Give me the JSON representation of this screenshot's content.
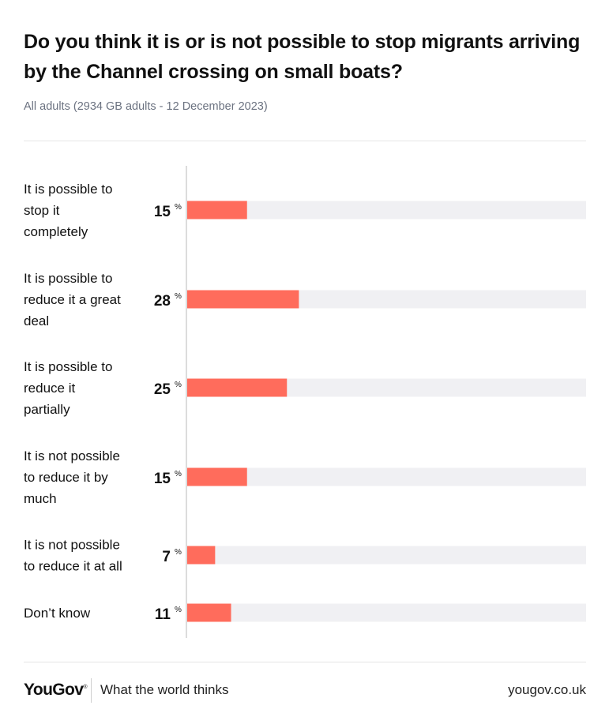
{
  "chart_data": {
    "type": "bar",
    "orientation": "horizontal",
    "title": "Do you think it is or is not possible to stop migrants arriving by the Channel crossing on small boats?",
    "subtitle": "All adults (2934 GB adults - 12 December 2023)",
    "unit": "%",
    "xlim": [
      0,
      100
    ],
    "categories": [
      [
        "It is possible to",
        "stop it",
        "completely"
      ],
      [
        "It is possible to",
        "reduce it a great",
        "deal"
      ],
      [
        "It is possible to",
        "reduce it",
        "partially"
      ],
      [
        "It is not possible",
        "to reduce it by",
        "much"
      ],
      [
        "It is not possible",
        "to reduce it at all"
      ],
      [
        "Don’t know"
      ]
    ],
    "values": [
      15,
      28,
      25,
      15,
      7,
      11
    ],
    "bar_color": "#ff6c5c",
    "track_color": "#f0f0f3"
  },
  "footer": {
    "brand": "YouGov",
    "brand_mark": "®",
    "tagline": "What the world thinks",
    "url": "yougov.co.uk"
  }
}
